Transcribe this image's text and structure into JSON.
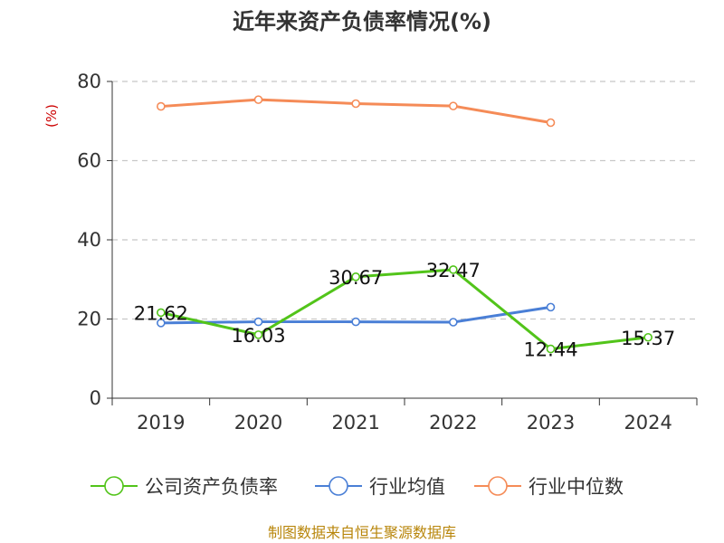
{
  "chart_data": {
    "type": "line",
    "title": "近年来资产负债率情况(%)",
    "ylabel": "(%)",
    "xlabel": "",
    "categories": [
      "2019",
      "2020",
      "2021",
      "2022",
      "2023",
      "2024"
    ],
    "ylim": [
      0,
      80
    ],
    "yticks": [
      0,
      20,
      40,
      60,
      80
    ],
    "grid": true,
    "legend_position": "bottom",
    "series": [
      {
        "name": "公司资产负债率",
        "color": "#52c41a",
        "values": [
          21.62,
          16.03,
          30.67,
          32.47,
          12.44,
          15.37
        ],
        "labels": [
          "21.62",
          "16.03",
          "30.67",
          "32.47",
          "12.44",
          "15.37"
        ]
      },
      {
        "name": "行业均值",
        "color": "#4a7fd6",
        "values": [
          19.0,
          19.3,
          19.3,
          19.2,
          23.0,
          null
        ]
      },
      {
        "name": "行业中位数",
        "color": "#f58b57",
        "values": [
          73.7,
          75.4,
          74.4,
          73.8,
          69.6,
          null
        ]
      }
    ]
  },
  "source_text": "制图数据来自恒生聚源数据库"
}
